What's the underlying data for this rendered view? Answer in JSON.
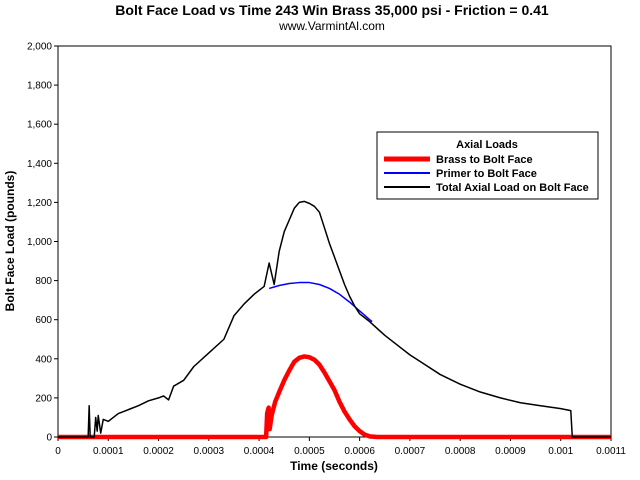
{
  "chart_data": {
    "type": "line",
    "title": "Bolt Face Load vs Time 243 Win Brass 35,000 psi - Friction = 0.41",
    "subtitle": "www.VarmintAl.com",
    "xlabel": "Time (seconds)",
    "ylabel": "Bolt Face Load (pounds)",
    "xlim": [
      0,
      0.0011
    ],
    "ylim": [
      0,
      2000
    ],
    "xticks": [
      "0",
      "0.0001",
      "0.0002",
      "0.0003",
      "0.0004",
      "0.0005",
      "0.0006",
      "0.0007",
      "0.0008",
      "0.0009",
      "0.001",
      "0.0011"
    ],
    "yticks": [
      "0",
      "200",
      "400",
      "600",
      "800",
      "1,000",
      "1,200",
      "1,400",
      "1,600",
      "1,800",
      "2,000"
    ],
    "grid": false,
    "legend": {
      "title": "Axial Loads",
      "position": "upper-right"
    },
    "series": [
      {
        "name": "Brass to Bolt Face",
        "color": "#ff0000",
        "points": [
          [
            0,
            0
          ],
          [
            0.0001,
            0
          ],
          [
            0.0002,
            0
          ],
          [
            0.0003,
            0
          ],
          [
            0.000414,
            0
          ],
          [
            0.000416,
            120
          ],
          [
            0.000419,
            150
          ],
          [
            0.000421,
            40
          ],
          [
            0.000425,
            110
          ],
          [
            0.000432,
            180
          ],
          [
            0.00044,
            230
          ],
          [
            0.00045,
            290
          ],
          [
            0.00046,
            340
          ],
          [
            0.00047,
            385
          ],
          [
            0.00048,
            405
          ],
          [
            0.00049,
            412
          ],
          [
            0.0005,
            408
          ],
          [
            0.00051,
            395
          ],
          [
            0.00052,
            370
          ],
          [
            0.00053,
            330
          ],
          [
            0.00054,
            285
          ],
          [
            0.00055,
            240
          ],
          [
            0.00056,
            180
          ],
          [
            0.00057,
            130
          ],
          [
            0.00058,
            90
          ],
          [
            0.00059,
            55
          ],
          [
            0.0006,
            30
          ],
          [
            0.00061,
            12
          ],
          [
            0.00062,
            3
          ],
          [
            0.000635,
            0
          ],
          [
            0.0007,
            0
          ],
          [
            0.0008,
            0
          ],
          [
            0.0009,
            0
          ],
          [
            0.001,
            0
          ],
          [
            0.0011,
            0
          ]
        ]
      },
      {
        "name": "Primer to Bolt Face",
        "color": "#0000ff",
        "points": [
          [
            0.00042,
            760
          ],
          [
            0.00044,
            775
          ],
          [
            0.00046,
            785
          ],
          [
            0.00048,
            790
          ],
          [
            0.0005,
            790
          ],
          [
            0.00052,
            780
          ],
          [
            0.00054,
            760
          ],
          [
            0.00056,
            730
          ],
          [
            0.00058,
            690
          ],
          [
            0.0006,
            645
          ],
          [
            0.00062,
            600
          ],
          [
            0.000625,
            590
          ]
        ]
      },
      {
        "name": "Total Axial Load on Bolt Face",
        "color": "#000000",
        "points": [
          [
            0,
            0
          ],
          [
            6e-05,
            0
          ],
          [
            6.2e-05,
            160
          ],
          [
            6.4e-05,
            0
          ],
          [
            7.2e-05,
            0
          ],
          [
            7.5e-05,
            100
          ],
          [
            7.8e-05,
            30
          ],
          [
            8e-05,
            110
          ],
          [
            8.5e-05,
            20
          ],
          [
            9e-05,
            90
          ],
          [
            0.0001,
            80
          ],
          [
            0.00011,
            100
          ],
          [
            0.00012,
            120
          ],
          [
            0.00014,
            140
          ],
          [
            0.00016,
            160
          ],
          [
            0.00018,
            185
          ],
          [
            0.0002,
            200
          ],
          [
            0.00021,
            210
          ],
          [
            0.00022,
            190
          ],
          [
            0.00023,
            260
          ],
          [
            0.00025,
            290
          ],
          [
            0.00027,
            360
          ],
          [
            0.0003,
            430
          ],
          [
            0.00033,
            500
          ],
          [
            0.00035,
            620
          ],
          [
            0.00037,
            680
          ],
          [
            0.00039,
            730
          ],
          [
            0.00041,
            770
          ],
          [
            0.00042,
            890
          ],
          [
            0.00043,
            780
          ],
          [
            0.00044,
            950
          ],
          [
            0.00045,
            1050
          ],
          [
            0.00046,
            1110
          ],
          [
            0.00047,
            1170
          ],
          [
            0.00048,
            1200
          ],
          [
            0.00049,
            1205
          ],
          [
            0.0005,
            1195
          ],
          [
            0.00051,
            1180
          ],
          [
            0.00052,
            1150
          ],
          [
            0.00053,
            1070
          ],
          [
            0.00054,
            990
          ],
          [
            0.00055,
            920
          ],
          [
            0.00056,
            850
          ],
          [
            0.00057,
            780
          ],
          [
            0.00058,
            720
          ],
          [
            0.00059,
            670
          ],
          [
            0.0006,
            630
          ],
          [
            0.00062,
            590
          ],
          [
            0.00065,
            520
          ],
          [
            0.00068,
            460
          ],
          [
            0.0007,
            420
          ],
          [
            0.00073,
            370
          ],
          [
            0.00076,
            320
          ],
          [
            0.0008,
            270
          ],
          [
            0.00084,
            230
          ],
          [
            0.00088,
            200
          ],
          [
            0.00092,
            175
          ],
          [
            0.00096,
            160
          ],
          [
            0.001,
            145
          ],
          [
            0.00102,
            135
          ],
          [
            0.001023,
            0
          ],
          [
            0.0011,
            0
          ]
        ]
      }
    ]
  }
}
